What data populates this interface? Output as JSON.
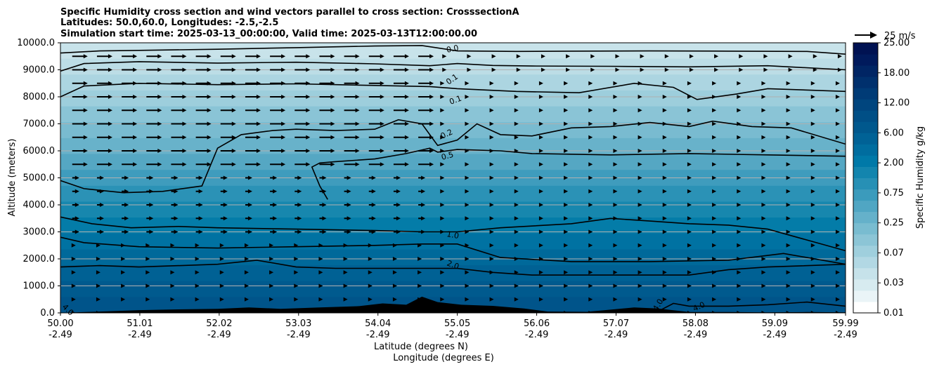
{
  "chart_data": {
    "type": "heatmap",
    "title_lines": [
      "Specific Humidity cross section and wind vectors parallel to cross section: CrosssectionA",
      "Latitudes: 50.0,60.0, Longitudes: -2.5,-2.5",
      "Simulation start time: 2025-03-13_00:00:00, Valid time: 2025-03-13T12:00:00.00"
    ],
    "xlabel": "Latitude (degrees N)",
    "xlabel2": "Longitude (degrees E)",
    "ylabel": "Altitude (meters)",
    "x_ticks": [
      {
        "lat": "50.00",
        "lon": "-2.49"
      },
      {
        "lat": "51.01",
        "lon": "-2.49"
      },
      {
        "lat": "52.02",
        "lon": "-2.49"
      },
      {
        "lat": "53.03",
        "lon": "-2.49"
      },
      {
        "lat": "54.04",
        "lon": "-2.49"
      },
      {
        "lat": "55.05",
        "lon": "-2.49"
      },
      {
        "lat": "56.06",
        "lon": "-2.49"
      },
      {
        "lat": "57.07",
        "lon": "-2.49"
      },
      {
        "lat": "58.08",
        "lon": "-2.49"
      },
      {
        "lat": "59.09",
        "lon": "-2.49"
      },
      {
        "lat": "59.99",
        "lon": "-2.49"
      }
    ],
    "xlim": [
      50.0,
      59.99
    ],
    "y_ticks": [
      "0.0",
      "1000.0",
      "2000.0",
      "3000.0",
      "4000.0",
      "5000.0",
      "6000.0",
      "7000.0",
      "8000.0",
      "9000.0",
      "10000.0"
    ],
    "ylim": [
      0,
      10000
    ],
    "grid": "horizontal",
    "colorbar": {
      "label": "Specific Humidity g/kg",
      "tick_labels": [
        "0.01",
        "0.03",
        "0.07",
        "0.25",
        "0.75",
        "2.00",
        "6.00",
        "12.00",
        "18.00",
        "25.00"
      ],
      "colors": [
        "#ffffff",
        "#eaf4f7",
        "#d7ebf0",
        "#c6e2ea",
        "#b2d8e4",
        "#9fcfdd",
        "#8cc5d6",
        "#79bcd0",
        "#65b1ca",
        "#50a6c3",
        "#3b9bbc",
        "#2790b5",
        "#1385ae",
        "#0079a8",
        "#006d9f",
        "#006296",
        "#00588d",
        "#004f86",
        "#00457e",
        "#003b76",
        "#00306d",
        "#002564",
        "#001a5c",
        "#001252"
      ]
    },
    "contour_labels": [
      "0.0",
      "0.1",
      "0.1",
      "0.2",
      "0.5",
      "1.0",
      "2.0",
      "4.0",
      "4.0",
      "4.0"
    ],
    "wind_reference": {
      "value": 25,
      "unit": "m/s",
      "label": "25 m/s"
    },
    "humidity_levels_altitude": [
      {
        "altitude": 9800,
        "value": 0.03
      },
      {
        "altitude": 9000,
        "value": 0.07
      },
      {
        "altitude": 8000,
        "value": 0.1
      },
      {
        "altitude": 7000,
        "value": 0.2
      },
      {
        "altitude": 6000,
        "value": 0.5
      },
      {
        "altitude": 3200,
        "value": 1.0
      },
      {
        "altitude": 1800,
        "value": 2.0
      },
      {
        "altitude": 0,
        "value": 4.0
      }
    ],
    "contours": [
      {
        "level": "0.0",
        "points": [
          [
            50.0,
            9620
          ],
          [
            50.5,
            9700
          ],
          [
            51.0,
            9720
          ],
          [
            52.0,
            9760
          ],
          [
            53.0,
            9820
          ],
          [
            54.0,
            9880
          ],
          [
            54.6,
            9900
          ],
          [
            55.05,
            9700
          ],
          [
            55.8,
            9680
          ],
          [
            56.5,
            9690
          ],
          [
            57.5,
            9700
          ],
          [
            58.5,
            9690
          ],
          [
            59.5,
            9680
          ],
          [
            59.99,
            9580
          ]
        ]
      },
      {
        "level": "0.1",
        "points": [
          [
            50.0,
            8950
          ],
          [
            50.3,
            9230
          ],
          [
            51.0,
            9300
          ],
          [
            52.0,
            9250
          ],
          [
            53.0,
            9280
          ],
          [
            54.0,
            9220
          ],
          [
            54.7,
            9150
          ],
          [
            55.05,
            9230
          ],
          [
            55.5,
            9160
          ],
          [
            56.0,
            9140
          ],
          [
            57.0,
            9130
          ],
          [
            58.0,
            9110
          ],
          [
            59.0,
            9150
          ],
          [
            59.99,
            9000
          ]
        ]
      },
      {
        "level": "0.1b",
        "points": [
          [
            50.0,
            8000
          ],
          [
            50.3,
            8400
          ],
          [
            51.0,
            8500
          ],
          [
            52.0,
            8450
          ],
          [
            53.0,
            8480
          ],
          [
            54.0,
            8420
          ],
          [
            54.7,
            8380
          ],
          [
            55.05,
            8300
          ],
          [
            55.8,
            8200
          ],
          [
            56.6,
            8150
          ],
          [
            57.3,
            8500
          ],
          [
            57.8,
            8350
          ],
          [
            58.1,
            7900
          ],
          [
            58.6,
            8100
          ],
          [
            59.0,
            8300
          ],
          [
            59.99,
            8200
          ]
        ]
      },
      {
        "level": "0.2",
        "points": [
          [
            50.0,
            4900
          ],
          [
            50.3,
            4600
          ],
          [
            50.8,
            4450
          ],
          [
            51.3,
            4500
          ],
          [
            51.8,
            4700
          ],
          [
            52.0,
            6100
          ],
          [
            52.3,
            6600
          ],
          [
            52.7,
            6750
          ],
          [
            53.0,
            6800
          ],
          [
            53.5,
            6750
          ],
          [
            54.0,
            6800
          ],
          [
            54.3,
            7150
          ],
          [
            54.6,
            7000
          ],
          [
            54.8,
            6200
          ],
          [
            55.05,
            6400
          ],
          [
            55.3,
            7000
          ],
          [
            55.6,
            6600
          ],
          [
            56.0,
            6550
          ],
          [
            56.5,
            6850
          ],
          [
            57.0,
            6900
          ],
          [
            57.5,
            7050
          ],
          [
            58.0,
            6900
          ],
          [
            58.3,
            7100
          ],
          [
            58.8,
            6900
          ],
          [
            59.3,
            6850
          ],
          [
            59.99,
            6250
          ]
        ]
      },
      {
        "level": "0.5",
        "points": [
          [
            53.4,
            4200
          ],
          [
            53.3,
            4700
          ],
          [
            53.2,
            5400
          ],
          [
            53.3,
            5550
          ],
          [
            53.5,
            5600
          ],
          [
            54.0,
            5700
          ],
          [
            54.4,
            5900
          ],
          [
            54.7,
            6100
          ],
          [
            54.8,
            5950
          ],
          [
            55.05,
            6050
          ],
          [
            55.6,
            6000
          ],
          [
            56.0,
            5900
          ],
          [
            57.0,
            5850
          ],
          [
            58.0,
            5900
          ],
          [
            59.0,
            5850
          ],
          [
            59.99,
            5800
          ]
        ]
      },
      {
        "level": "1.0",
        "points": [
          [
            50.0,
            3550
          ],
          [
            50.4,
            3300
          ],
          [
            50.9,
            3150
          ],
          [
            51.5,
            3200
          ],
          [
            52.0,
            3150
          ],
          [
            53.0,
            3100
          ],
          [
            54.0,
            3050
          ],
          [
            54.6,
            3000
          ],
          [
            55.05,
            3000
          ],
          [
            55.6,
            3150
          ],
          [
            56.5,
            3300
          ],
          [
            57.0,
            3500
          ],
          [
            57.5,
            3400
          ],
          [
            58.0,
            3300
          ],
          [
            58.5,
            3250
          ],
          [
            59.0,
            3100
          ],
          [
            59.99,
            2300
          ]
        ]
      },
      {
        "level": "2.0",
        "points": [
          [
            50.0,
            2800
          ],
          [
            50.3,
            2600
          ],
          [
            51.0,
            2450
          ],
          [
            52.0,
            2400
          ],
          [
            53.0,
            2450
          ],
          [
            54.0,
            2500
          ],
          [
            54.6,
            2550
          ],
          [
            55.05,
            2550
          ],
          [
            55.6,
            2050
          ],
          [
            56.5,
            1900
          ],
          [
            57.5,
            1900
          ],
          [
            58.5,
            1950
          ],
          [
            59.2,
            2200
          ],
          [
            59.99,
            1800
          ]
        ]
      },
      {
        "level": "2.0b",
        "points": [
          [
            50.0,
            1700
          ],
          [
            50.5,
            1750
          ],
          [
            51.0,
            1700
          ],
          [
            52.0,
            1800
          ],
          [
            52.5,
            1950
          ],
          [
            53.0,
            1700
          ],
          [
            53.5,
            1650
          ],
          [
            54.0,
            1650
          ],
          [
            54.6,
            1650
          ],
          [
            55.05,
            1650
          ],
          [
            55.5,
            1500
          ],
          [
            56.0,
            1400
          ],
          [
            57.0,
            1400
          ],
          [
            58.0,
            1400
          ],
          [
            58.5,
            1600
          ],
          [
            59.0,
            1700
          ],
          [
            59.99,
            1800
          ]
        ]
      },
      {
        "level": "4.0",
        "points": [
          [
            57.6,
            50
          ],
          [
            57.8,
            350
          ],
          [
            58.0,
            250
          ],
          [
            58.5,
            250
          ],
          [
            59.0,
            300
          ],
          [
            59.5,
            400
          ],
          [
            59.99,
            250
          ]
        ]
      }
    ],
    "terrain_points": [
      [
        50.0,
        0
      ],
      [
        50.6,
        60
      ],
      [
        51.0,
        100
      ],
      [
        51.5,
        130
      ],
      [
        52.0,
        150
      ],
      [
        52.4,
        200
      ],
      [
        52.8,
        150
      ],
      [
        53.3,
        200
      ],
      [
        53.8,
        250
      ],
      [
        54.1,
        350
      ],
      [
        54.4,
        300
      ],
      [
        54.6,
        600
      ],
      [
        54.8,
        400
      ],
      [
        55.1,
        300
      ],
      [
        55.5,
        260
      ],
      [
        55.9,
        160
      ],
      [
        56.2,
        50
      ],
      [
        56.7,
        40
      ],
      [
        57.0,
        120
      ],
      [
        57.3,
        200
      ],
      [
        57.6,
        160
      ],
      [
        58.0,
        30
      ],
      [
        58.5,
        30
      ],
      [
        59.0,
        20
      ],
      [
        59.5,
        30
      ],
      [
        59.99,
        20
      ]
    ]
  }
}
